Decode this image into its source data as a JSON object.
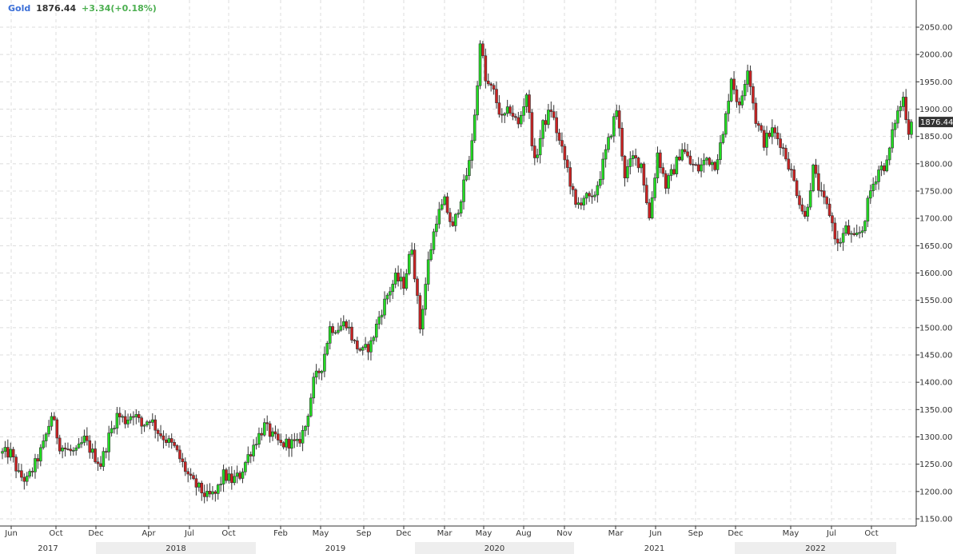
{
  "header": {
    "symbol": "Gold",
    "last": "1876.44",
    "change": "+3.34(+0.18%)"
  },
  "colors": {
    "up": "#22dd22",
    "down": "#cc2222",
    "grid": "#dcdcdc",
    "price_tag_bg": "#333333",
    "symbol": "#3b6fd8",
    "change": "#4caf50",
    "year_band": "#eeeeee"
  },
  "chart_data": {
    "type": "candlestick",
    "instrument": "Gold",
    "interval": "weekly",
    "ylim": [
      1140,
      2080
    ],
    "y_ticks": [
      "2050.00",
      "2000.00",
      "1950.00",
      "1900.00",
      "1850.00",
      "1800.00",
      "1750.00",
      "1700.00",
      "1650.00",
      "1600.00",
      "1550.00",
      "1500.00",
      "1450.00",
      "1400.00",
      "1350.00",
      "1300.00",
      "1250.00",
      "1200.00",
      "1150.00"
    ],
    "current_price_label": "1876.44",
    "x_month_labels": [
      "Jun",
      "Oct",
      "Dec",
      "Apr",
      "Jul",
      "Oct",
      "Feb",
      "May",
      "Sep",
      "Dec",
      "Mar",
      "May",
      "Aug",
      "Nov",
      "Mar",
      "Jun",
      "Sep",
      "Dec",
      "May",
      "Jul",
      "Oct"
    ],
    "x_year_labels": [
      "2017",
      "2018",
      "2019",
      "2020",
      "2021",
      "2022"
    ],
    "grid": true,
    "up_color_name": "green",
    "down_color_name": "red",
    "close_path": [
      [
        0,
        1270
      ],
      [
        3,
        1270
      ],
      [
        6,
        1230
      ],
      [
        9,
        1220
      ],
      [
        12,
        1250
      ],
      [
        15,
        1285
      ],
      [
        18,
        1340
      ],
      [
        21,
        1285
      ],
      [
        24,
        1275
      ],
      [
        27,
        1270
      ],
      [
        30,
        1295
      ],
      [
        33,
        1270
      ],
      [
        36,
        1250
      ],
      [
        39,
        1300
      ],
      [
        42,
        1340
      ],
      [
        45,
        1330
      ],
      [
        48,
        1345
      ],
      [
        51,
        1320
      ],
      [
        54,
        1335
      ],
      [
        57,
        1310
      ],
      [
        60,
        1295
      ],
      [
        63,
        1280
      ],
      [
        66,
        1250
      ],
      [
        69,
        1220
      ],
      [
        72,
        1205
      ],
      [
        75,
        1190
      ],
      [
        78,
        1195
      ],
      [
        81,
        1230
      ],
      [
        84,
        1220
      ],
      [
        87,
        1230
      ],
      [
        90,
        1265
      ],
      [
        93,
        1295
      ],
      [
        96,
        1320
      ],
      [
        99,
        1300
      ],
      [
        102,
        1285
      ],
      [
        105,
        1290
      ],
      [
        108,
        1285
      ],
      [
        111,
        1320
      ],
      [
        114,
        1400
      ],
      [
        117,
        1430
      ],
      [
        120,
        1500
      ],
      [
        123,
        1500
      ],
      [
        126,
        1510
      ],
      [
        129,
        1470
      ],
      [
        132,
        1455
      ],
      [
        135,
        1470
      ],
      [
        138,
        1520
      ],
      [
        141,
        1560
      ],
      [
        144,
        1590
      ],
      [
        147,
        1580
      ],
      [
        150,
        1650
      ],
      [
        153,
        1500
      ],
      [
        156,
        1620
      ],
      [
        159,
        1700
      ],
      [
        162,
        1730
      ],
      [
        165,
        1680
      ],
      [
        168,
        1740
      ],
      [
        171,
        1800
      ],
      [
        174,
        1940
      ],
      [
        175,
        2030
      ],
      [
        177,
        1950
      ],
      [
        180,
        1930
      ],
      [
        183,
        1880
      ],
      [
        186,
        1900
      ],
      [
        189,
        1870
      ],
      [
        192,
        1930
      ],
      [
        195,
        1800
      ],
      [
        198,
        1870
      ],
      [
        201,
        1900
      ],
      [
        204,
        1840
      ],
      [
        207,
        1790
      ],
      [
        210,
        1720
      ],
      [
        213,
        1740
      ],
      [
        216,
        1730
      ],
      [
        219,
        1780
      ],
      [
        222,
        1840
      ],
      [
        225,
        1900
      ],
      [
        228,
        1780
      ],
      [
        231,
        1810
      ],
      [
        234,
        1800
      ],
      [
        237,
        1700
      ],
      [
        240,
        1820
      ],
      [
        243,
        1760
      ],
      [
        246,
        1790
      ],
      [
        249,
        1830
      ],
      [
        252,
        1800
      ],
      [
        255,
        1790
      ],
      [
        258,
        1810
      ],
      [
        261,
        1800
      ],
      [
        264,
        1850
      ],
      [
        267,
        1960
      ],
      [
        270,
        1900
      ],
      [
        273,
        1980
      ],
      [
        276,
        1880
      ],
      [
        279,
        1840
      ],
      [
        282,
        1860
      ],
      [
        285,
        1840
      ],
      [
        288,
        1800
      ],
      [
        291,
        1750
      ],
      [
        294,
        1700
      ],
      [
        297,
        1790
      ],
      [
        300,
        1740
      ],
      [
        303,
        1710
      ],
      [
        306,
        1650
      ],
      [
        309,
        1680
      ],
      [
        312,
        1660
      ],
      [
        315,
        1680
      ],
      [
        318,
        1750
      ],
      [
        321,
        1790
      ],
      [
        324,
        1800
      ],
      [
        327,
        1880
      ],
      [
        330,
        1920
      ],
      [
        332,
        1860
      ],
      [
        333,
        1876.44
      ]
    ]
  }
}
